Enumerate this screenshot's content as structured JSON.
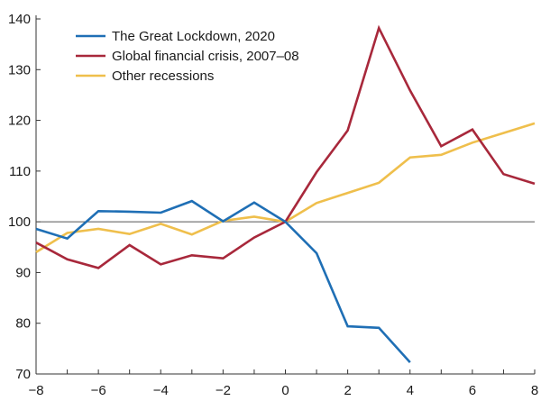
{
  "chart_data": {
    "type": "line",
    "x": [
      -8,
      -7,
      -6,
      -5,
      -4,
      -3,
      -2,
      -1,
      0,
      1,
      2,
      3,
      4,
      5,
      6,
      7,
      8
    ],
    "xlim": [
      -8,
      8
    ],
    "ylim": [
      70,
      140
    ],
    "x_ticks": [
      -8,
      -6,
      -4,
      -2,
      0,
      2,
      4,
      6,
      8
    ],
    "y_ticks": [
      70,
      80,
      90,
      100,
      110,
      120,
      130,
      140
    ],
    "x_tick_labels": [
      "−8",
      "−6",
      "−4",
      "−2",
      "0",
      "2",
      "4",
      "6",
      "8"
    ],
    "y_tick_labels": [
      "70",
      "80",
      "90",
      "100",
      "110",
      "120",
      "130",
      "140"
    ],
    "reference_line": 100,
    "grid": false,
    "legend_position": "top-left",
    "series": [
      {
        "name": "The Great Lockdown, 2020",
        "color": "#1f6fb5",
        "values": [
          98.6,
          96.7,
          102.1,
          102.0,
          101.8,
          104.1,
          100.1,
          103.8,
          100.0,
          93.8,
          79.4,
          79.1,
          72.3,
          null,
          null,
          null,
          null
        ]
      },
      {
        "name": "Global financial crisis, 2007–08",
        "color": "#a8283b",
        "values": [
          95.9,
          92.6,
          90.9,
          95.4,
          91.6,
          93.4,
          92.8,
          96.9,
          100.0,
          109.8,
          118.0,
          138.2,
          125.9,
          114.9,
          118.2,
          109.4,
          107.5
        ]
      },
      {
        "name": "Other recessions",
        "color": "#efbf4c",
        "values": [
          94.0,
          97.8,
          98.6,
          97.6,
          99.6,
          97.5,
          100.2,
          101.0,
          100.0,
          103.7,
          105.7,
          107.7,
          112.7,
          113.2,
          115.6,
          117.5,
          119.4
        ]
      }
    ]
  }
}
